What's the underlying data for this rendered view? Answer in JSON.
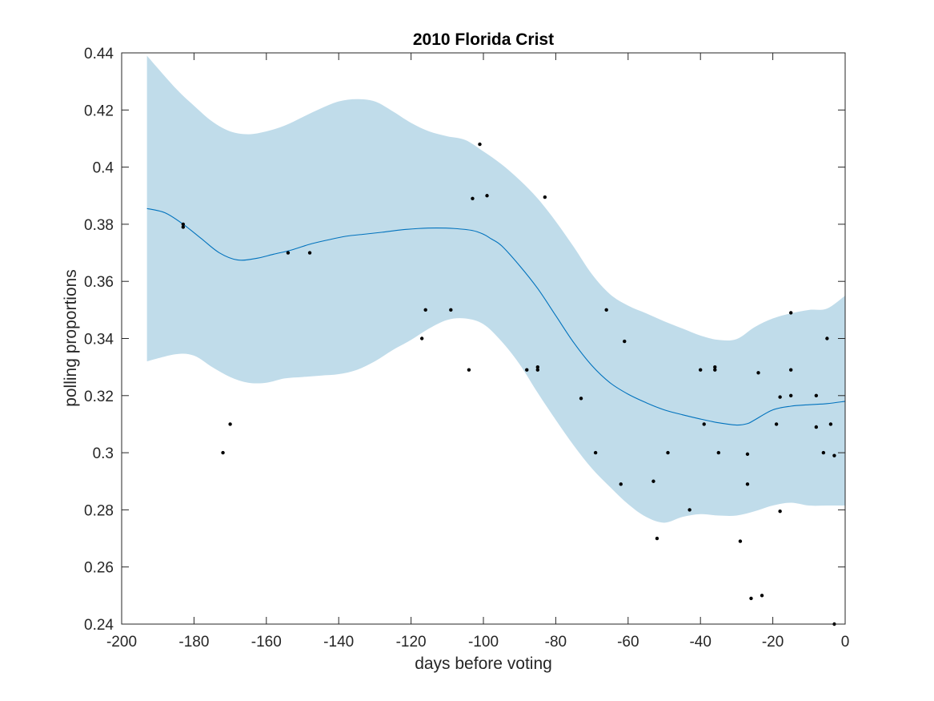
{
  "chart_data": {
    "type": "scatter",
    "title": "2010 Florida Crist",
    "xlabel": "days before voting",
    "ylabel": "polling proportions",
    "xlim": [
      -200,
      0
    ],
    "ylim": [
      0.24,
      0.44
    ],
    "xticks": [
      -200,
      -180,
      -160,
      -140,
      -120,
      -100,
      -80,
      -60,
      -40,
      -20,
      0
    ],
    "xtick_labels": [
      "-200",
      "-180",
      "-160",
      "-140",
      "-120",
      "-100",
      "-80",
      "-60",
      "-40",
      "-20",
      "0"
    ],
    "yticks": [
      0.24,
      0.26,
      0.28,
      0.3,
      0.32,
      0.34,
      0.36,
      0.38,
      0.4,
      0.42,
      0.44
    ],
    "ytick_labels": [
      "0.24",
      "0.26",
      "0.28",
      "0.3",
      "0.32",
      "0.34",
      "0.36",
      "0.38",
      "0.4",
      "0.42",
      "0.44"
    ],
    "grid": false,
    "colors": {
      "band": "#c0dcea",
      "mean_line": "#0072bd",
      "points": "#000000",
      "axis": "#262626"
    },
    "series": [
      {
        "type": "area",
        "x": [
          -193,
          -185,
          -180,
          -175,
          -170,
          -165,
          -160,
          -155,
          -150,
          -145,
          -140,
          -135,
          -130,
          -125,
          -120,
          -115,
          -110,
          -105,
          -100,
          -95,
          -90,
          -85,
          -80,
          -75,
          -70,
          -65,
          -60,
          -55,
          -50,
          -45,
          -40,
          -35,
          -30,
          -25,
          -20,
          -15,
          -10,
          -5,
          0
        ],
        "lower": [
          0.332,
          0.3345,
          0.334,
          0.33,
          0.3265,
          0.3245,
          0.3245,
          0.326,
          0.3265,
          0.327,
          0.3275,
          0.329,
          0.332,
          0.336,
          0.3395,
          0.3435,
          0.3465,
          0.347,
          0.345,
          0.339,
          0.331,
          0.321,
          0.3115,
          0.3025,
          0.2945,
          0.288,
          0.282,
          0.2775,
          0.2755,
          0.2775,
          0.2785,
          0.278,
          0.278,
          0.2795,
          0.2815,
          0.2825,
          0.2815,
          0.2815,
          0.2815
        ],
        "upper": [
          0.439,
          0.4275,
          0.4215,
          0.416,
          0.4125,
          0.4115,
          0.4125,
          0.4145,
          0.4175,
          0.4205,
          0.423,
          0.4238,
          0.423,
          0.4195,
          0.4155,
          0.4125,
          0.4108,
          0.4095,
          0.4055,
          0.401,
          0.3955,
          0.389,
          0.381,
          0.372,
          0.3625,
          0.3555,
          0.3515,
          0.3488,
          0.346,
          0.3435,
          0.341,
          0.3395,
          0.3398,
          0.344,
          0.347,
          0.3488,
          0.35,
          0.3505,
          0.355
        ]
      },
      {
        "type": "line",
        "x": [
          -193,
          -188,
          -183,
          -178,
          -173,
          -168,
          -163,
          -158,
          -153,
          -148,
          -143,
          -138,
          -133,
          -128,
          -123,
          -118,
          -113,
          -108,
          -103,
          -100,
          -98,
          -95,
          -90,
          -85,
          -80,
          -75,
          -70,
          -65,
          -60,
          -55,
          -50,
          -45,
          -40,
          -35,
          -30,
          -27,
          -25,
          -20,
          -15,
          -10,
          -5,
          0
        ],
        "y": [
          0.3855,
          0.384,
          0.38,
          0.375,
          0.37,
          0.3675,
          0.368,
          0.3695,
          0.371,
          0.373,
          0.3745,
          0.3758,
          0.3765,
          0.3772,
          0.378,
          0.3785,
          0.3787,
          0.3785,
          0.3778,
          0.3765,
          0.375,
          0.3725,
          0.3655,
          0.3575,
          0.348,
          0.3385,
          0.3305,
          0.3245,
          0.3205,
          0.3175,
          0.315,
          0.3133,
          0.3118,
          0.3105,
          0.3097,
          0.3102,
          0.3115,
          0.315,
          0.3163,
          0.3168,
          0.3172,
          0.318
        ]
      },
      {
        "type": "scatter",
        "points": [
          [
            -183,
            0.38
          ],
          [
            -183,
            0.379
          ],
          [
            -172,
            0.3
          ],
          [
            -170,
            0.31
          ],
          [
            -154,
            0.37
          ],
          [
            -148,
            0.37
          ],
          [
            -117,
            0.34
          ],
          [
            -116,
            0.35
          ],
          [
            -109,
            0.35
          ],
          [
            -104,
            0.329
          ],
          [
            -103,
            0.389
          ],
          [
            -101,
            0.408
          ],
          [
            -99,
            0.39
          ],
          [
            -88,
            0.329
          ],
          [
            -85,
            0.33
          ],
          [
            -85,
            0.329
          ],
          [
            -83,
            0.3895
          ],
          [
            -73,
            0.319
          ],
          [
            -69,
            0.3
          ],
          [
            -66,
            0.35
          ],
          [
            -62,
            0.289
          ],
          [
            -61,
            0.339
          ],
          [
            -53,
            0.29
          ],
          [
            -52,
            0.27
          ],
          [
            -49,
            0.3
          ],
          [
            -43,
            0.28
          ],
          [
            -40,
            0.329
          ],
          [
            -39,
            0.31
          ],
          [
            -36,
            0.33
          ],
          [
            -36,
            0.329
          ],
          [
            -35,
            0.3
          ],
          [
            -29,
            0.269
          ],
          [
            -27,
            0.2995
          ],
          [
            -27,
            0.289
          ],
          [
            -26,
            0.249
          ],
          [
            -24,
            0.328
          ],
          [
            -23,
            0.25
          ],
          [
            -19,
            0.31
          ],
          [
            -18,
            0.3195
          ],
          [
            -18,
            0.2795
          ],
          [
            -15,
            0.349
          ],
          [
            -15,
            0.329
          ],
          [
            -15,
            0.32
          ],
          [
            -8,
            0.32
          ],
          [
            -8,
            0.309
          ],
          [
            -6,
            0.3
          ],
          [
            -5,
            0.34
          ],
          [
            -4,
            0.31
          ],
          [
            -3,
            0.299
          ],
          [
            -3,
            0.24
          ]
        ]
      }
    ]
  }
}
